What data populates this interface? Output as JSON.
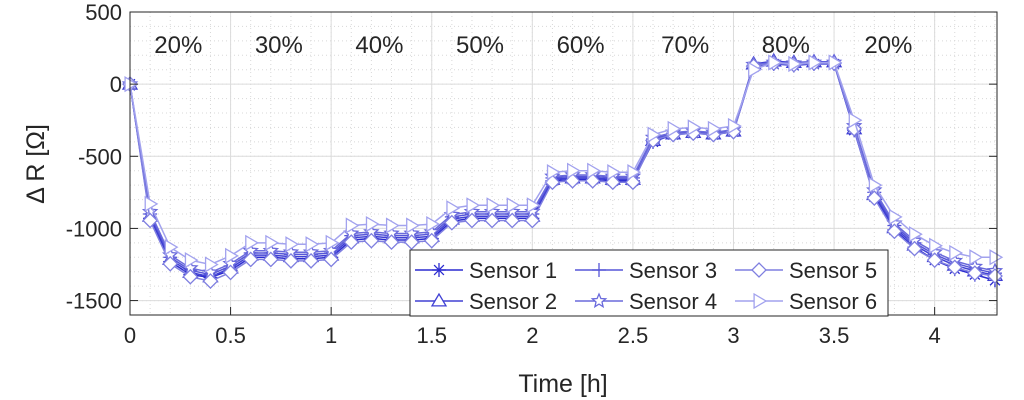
{
  "chart_data": {
    "type": "line",
    "title": "",
    "xlabel": "Time [h]",
    "ylabel": "Δ R [Ω]",
    "xlim": [
      0,
      4.31
    ],
    "ylim": [
      -1600,
      500
    ],
    "xticks": [
      0,
      0.5,
      1,
      1.5,
      2,
      2.5,
      3,
      3.5,
      4
    ],
    "xtick_labels": [
      "0",
      "0.5",
      "1",
      "1.5",
      "2",
      "2.5",
      "3",
      "3.5",
      "4"
    ],
    "yticks": [
      500,
      0,
      -500,
      -1000,
      -1500
    ],
    "ytick_labels": [
      "500",
      "0",
      "-500",
      "-1000",
      "-1500"
    ],
    "grid": true,
    "minor_grid": true,
    "legend_position": "bottom-right",
    "x": [
      0,
      0.1,
      0.2,
      0.3,
      0.4,
      0.5,
      0.6,
      0.7,
      0.8,
      0.9,
      1.0,
      1.1,
      1.2,
      1.3,
      1.4,
      1.5,
      1.6,
      1.7,
      1.8,
      1.9,
      2.0,
      2.1,
      2.2,
      2.3,
      2.4,
      2.5,
      2.6,
      2.7,
      2.8,
      2.9,
      3.0,
      3.1,
      3.2,
      3.3,
      3.4,
      3.5,
      3.6,
      3.7,
      3.8,
      3.9,
      4.0,
      4.1,
      4.2,
      4.3
    ],
    "series": [
      {
        "name": "Sensor 1",
        "marker": "asterisk",
        "color": "#2c2cd0",
        "values": [
          0,
          -930,
          -1230,
          -1320,
          -1340,
          -1290,
          -1200,
          -1200,
          -1210,
          -1210,
          -1200,
          -1080,
          -1070,
          -1080,
          -1080,
          -1070,
          -950,
          -930,
          -930,
          -930,
          -930,
          -670,
          -660,
          -660,
          -670,
          -670,
          -400,
          -350,
          -340,
          -350,
          -330,
          120,
          140,
          130,
          140,
          140,
          -320,
          -780,
          -1010,
          -1130,
          -1220,
          -1280,
          -1320,
          -1360
        ]
      },
      {
        "name": "Sensor 2",
        "marker": "triangle-up",
        "color": "#4040d4",
        "values": [
          0,
          -915,
          -1215,
          -1305,
          -1335,
          -1275,
          -1185,
          -1185,
          -1195,
          -1195,
          -1185,
          -1065,
          -1055,
          -1065,
          -1065,
          -1055,
          -935,
          -915,
          -915,
          -915,
          -915,
          -660,
          -650,
          -650,
          -660,
          -660,
          -390,
          -345,
          -335,
          -345,
          -325,
          140,
          160,
          150,
          155,
          155,
          -310,
          -765,
          -995,
          -1115,
          -1195,
          -1255,
          -1295,
          -1325
        ]
      },
      {
        "name": "Sensor 3",
        "marker": "plus",
        "color": "#5656d8",
        "values": [
          0,
          -900,
          -1200,
          -1290,
          -1320,
          -1260,
          -1170,
          -1170,
          -1180,
          -1180,
          -1170,
          -1050,
          -1040,
          -1050,
          -1050,
          -1040,
          -920,
          -900,
          -900,
          -900,
          -900,
          -650,
          -640,
          -640,
          -650,
          -650,
          -380,
          -340,
          -330,
          -340,
          -320,
          130,
          150,
          140,
          150,
          150,
          -300,
          -750,
          -980,
          -1100,
          -1180,
          -1240,
          -1280,
          -1310
        ]
      },
      {
        "name": "Sensor 4",
        "marker": "star",
        "color": "#6a6adc",
        "values": [
          0,
          -885,
          -1185,
          -1275,
          -1305,
          -1245,
          -1155,
          -1155,
          -1165,
          -1165,
          -1155,
          -1035,
          -1025,
          -1035,
          -1035,
          -1025,
          -905,
          -885,
          -885,
          -885,
          -885,
          -640,
          -630,
          -630,
          -640,
          -640,
          -370,
          -335,
          -325,
          -335,
          -315,
          135,
          150,
          145,
          150,
          150,
          -290,
          -735,
          -965,
          -1085,
          -1165,
          -1225,
          -1265,
          -1295
        ]
      },
      {
        "name": "Sensor 5",
        "marker": "diamond",
        "color": "#7f7fe0",
        "values": [
          0,
          -945,
          -1245,
          -1335,
          -1365,
          -1305,
          -1215,
          -1215,
          -1225,
          -1225,
          -1215,
          -1095,
          -1085,
          -1095,
          -1095,
          -1085,
          -960,
          -945,
          -945,
          -945,
          -945,
          -680,
          -670,
          -670,
          -680,
          -680,
          -390,
          -350,
          -340,
          -350,
          -330,
          125,
          145,
          135,
          145,
          145,
          -310,
          -790,
          -1020,
          -1140,
          -1220,
          -1270,
          -1310,
          -1330
        ]
      },
      {
        "name": "Sensor 6",
        "marker": "triangle-right",
        "color": "#a2a2ee",
        "values": [
          0,
          -830,
          -1130,
          -1220,
          -1250,
          -1190,
          -1100,
          -1100,
          -1110,
          -1110,
          -1100,
          -980,
          -970,
          -980,
          -980,
          -970,
          -860,
          -840,
          -840,
          -840,
          -840,
          -610,
          -600,
          -600,
          -610,
          -610,
          -350,
          -310,
          -300,
          -310,
          -290,
          100,
          150,
          140,
          150,
          150,
          -250,
          -700,
          -920,
          -1040,
          -1120,
          -1170,
          -1200,
          -1200
        ]
      }
    ],
    "annotations": [
      {
        "text": "20%",
        "x": 0.24,
        "y": 300
      },
      {
        "text": "30%",
        "x": 0.74,
        "y": 300
      },
      {
        "text": "40%",
        "x": 1.24,
        "y": 300
      },
      {
        "text": "50%",
        "x": 1.74,
        "y": 300
      },
      {
        "text": "60%",
        "x": 2.24,
        "y": 300
      },
      {
        "text": "70%",
        "x": 2.76,
        "y": 300
      },
      {
        "text": "80%",
        "x": 3.26,
        "y": 300
      },
      {
        "text": "20%",
        "x": 3.77,
        "y": 300
      }
    ]
  }
}
